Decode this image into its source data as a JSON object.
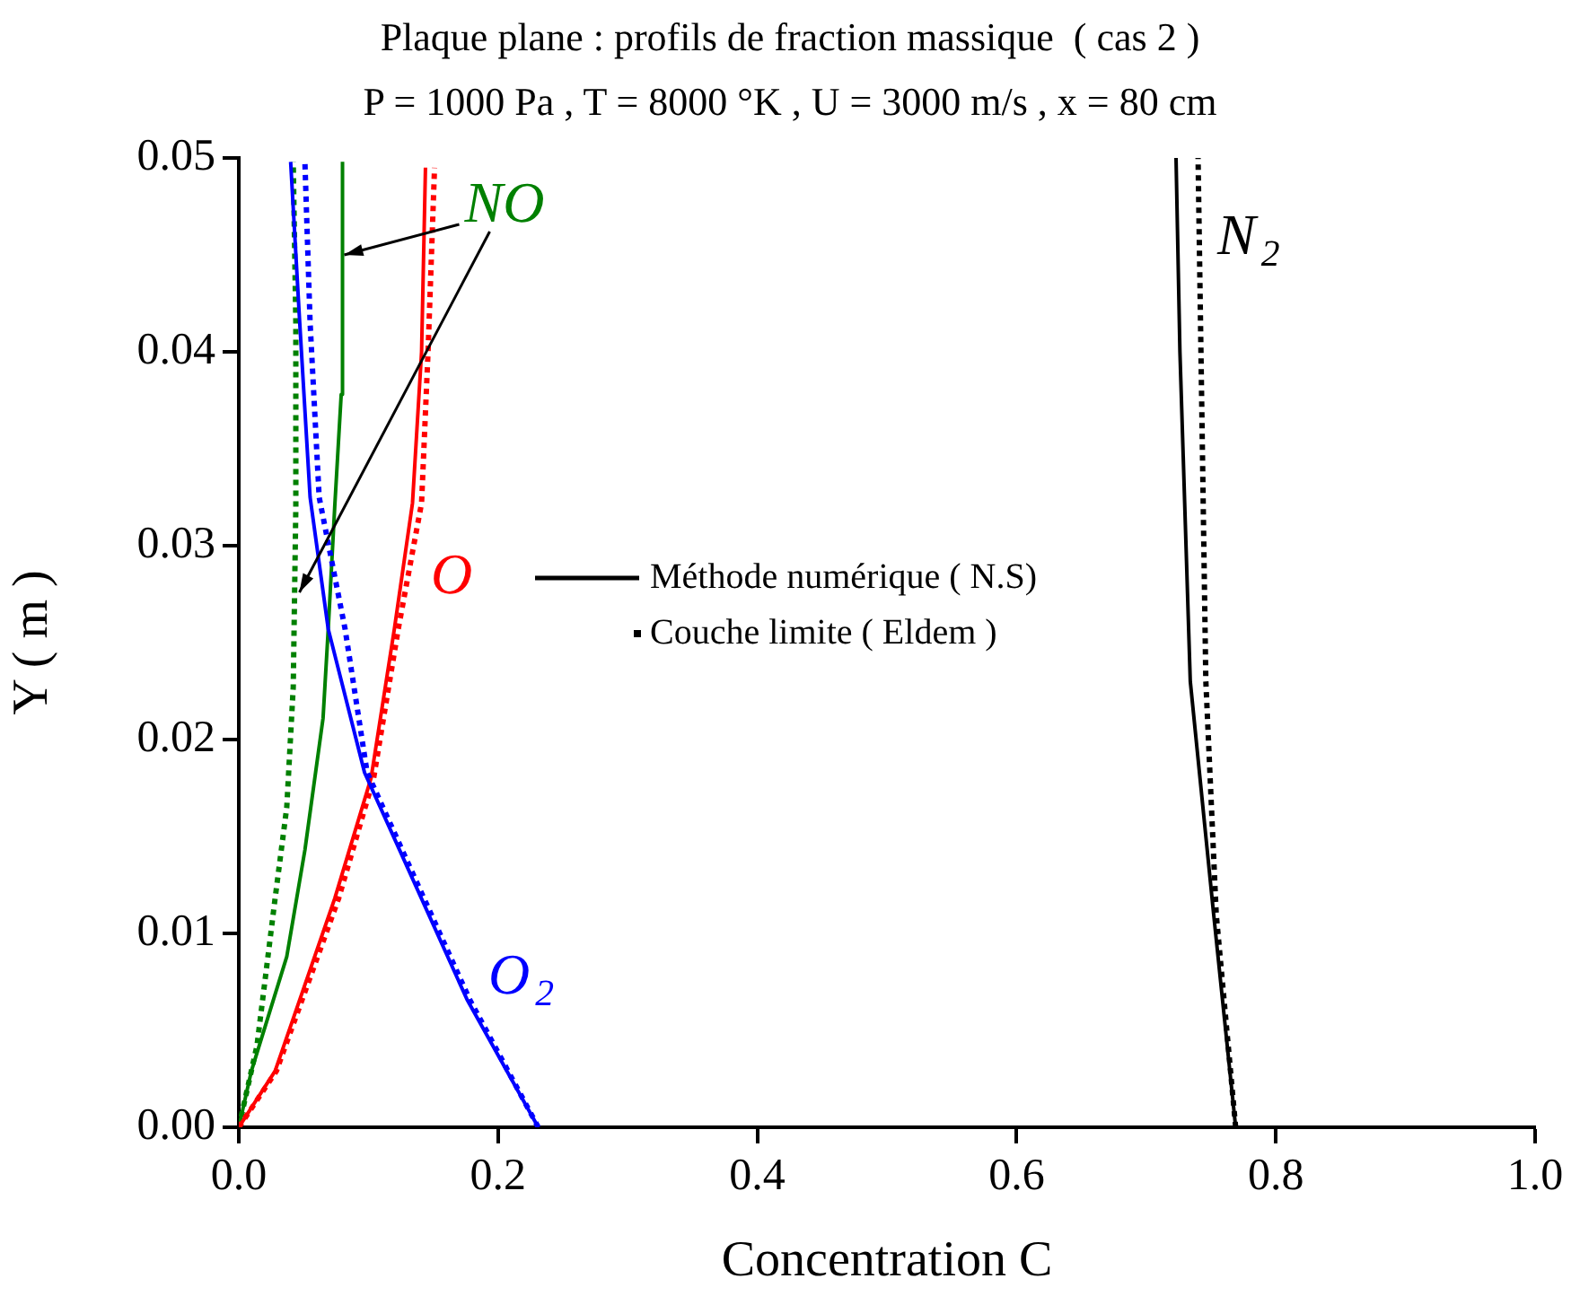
{
  "chart_data": {
    "type": "line",
    "title": "Plaque plane : profils de fraction massique  ( cas 2 )",
    "subtitle": "P = 1000 Pa , T = 8000 °K , U = 3000 m/s , x = 80 cm",
    "xlabel": "Concentration C",
    "ylabel": "Y ( m )",
    "xlim": [
      0,
      1
    ],
    "ylim": [
      0,
      0.05
    ],
    "xticks": [
      {
        "value": 0,
        "label": "0.0"
      },
      0.2,
      0.4,
      0.6,
      0.8,
      {
        "value": 1,
        "label": "1.0"
      }
    ],
    "yticks": [
      {
        "value": 0,
        "label": "0.00"
      },
      {
        "value": 0.01,
        "label": "0.01"
      },
      {
        "value": 0.02,
        "label": "0.02"
      },
      {
        "value": 0.03,
        "label": "0.03"
      },
      {
        "value": 0.04,
        "label": "0.04"
      },
      {
        "value": 0.05,
        "label": "0.05"
      }
    ],
    "grid": false,
    "legend": "center",
    "marker": "none",
    "series": [
      {
        "name": "Méthode numérique ( N.S)",
        "color": "#000000",
        "line_style": "solid",
        "x": [
          0.769,
          0.752,
          0.734,
          0.726,
          0.723
        ],
        "values": [
          0,
          0.011,
          0.023,
          0.04,
          0.05
        ]
      },
      {
        "name": "Couche limite ( Eldem )",
        "color": "#000000",
        "line_style": "dotted",
        "x": [
          0.769,
          0.754,
          0.746,
          0.74
        ],
        "values": [
          0,
          0.011,
          0.023,
          0.05
        ]
      },
      {
        "color": "#0000ff",
        "line_style": "solid",
        "x": [
          0.231,
          0.176,
          0.12,
          0.097,
          0.069,
          0.055,
          0.047,
          0.04
        ],
        "values": [
          0,
          0.0066,
          0.0149,
          0.0183,
          0.0257,
          0.0325,
          0.0415,
          0.0498
        ]
      },
      {
        "color": "#0000ff",
        "line_style": "dotted",
        "x": [
          0.231,
          0.178,
          0.122,
          0.099,
          0.082,
          0.062,
          0.055,
          0.051
        ],
        "values": [
          0,
          0.0066,
          0.0149,
          0.0183,
          0.0257,
          0.0325,
          0.0415,
          0.0498
        ]
      },
      {
        "color": "#ff0000",
        "line_style": "solid",
        "x": [
          0,
          0.028,
          0.074,
          0.102,
          0.12,
          0.134,
          0.141,
          0.144
        ],
        "values": [
          0,
          0.0029,
          0.0118,
          0.018,
          0.0257,
          0.0322,
          0.04,
          0.0495
        ]
      },
      {
        "color": "#ff0000",
        "line_style": "dotted",
        "x": [
          0,
          0.029,
          0.077,
          0.104,
          0.123,
          0.141,
          0.146,
          0.151
        ],
        "values": [
          0,
          0.0029,
          0.0118,
          0.018,
          0.0257,
          0.0322,
          0.04,
          0.0495
        ]
      },
      {
        "color": "#008000",
        "line_style": "solid",
        "x": [
          0,
          0.0097,
          0.037,
          0.051,
          0.065,
          0.069,
          0.074,
          0.079,
          0.08
        ],
        "values": [
          0,
          0.0029,
          0.0088,
          0.0143,
          0.0211,
          0.0257,
          0.032,
          0.0378,
          0.0498
        ]
      },
      {
        "color": "#008000",
        "line_style": "dotted",
        "x": [
          0,
          0.014,
          0.028,
          0.037,
          0.042,
          0.044,
          0.044,
          0.042
        ],
        "values": [
          0,
          0.0042,
          0.0118,
          0.0165,
          0.0227,
          0.032,
          0.0415,
          0.0498
        ]
      }
    ],
    "annotations": [
      {
        "text": "NO",
        "x": 0.08,
        "y": 0.045
      },
      "O",
      "O$_{2}$",
      "N$_{2}$"
    ]
  }
}
